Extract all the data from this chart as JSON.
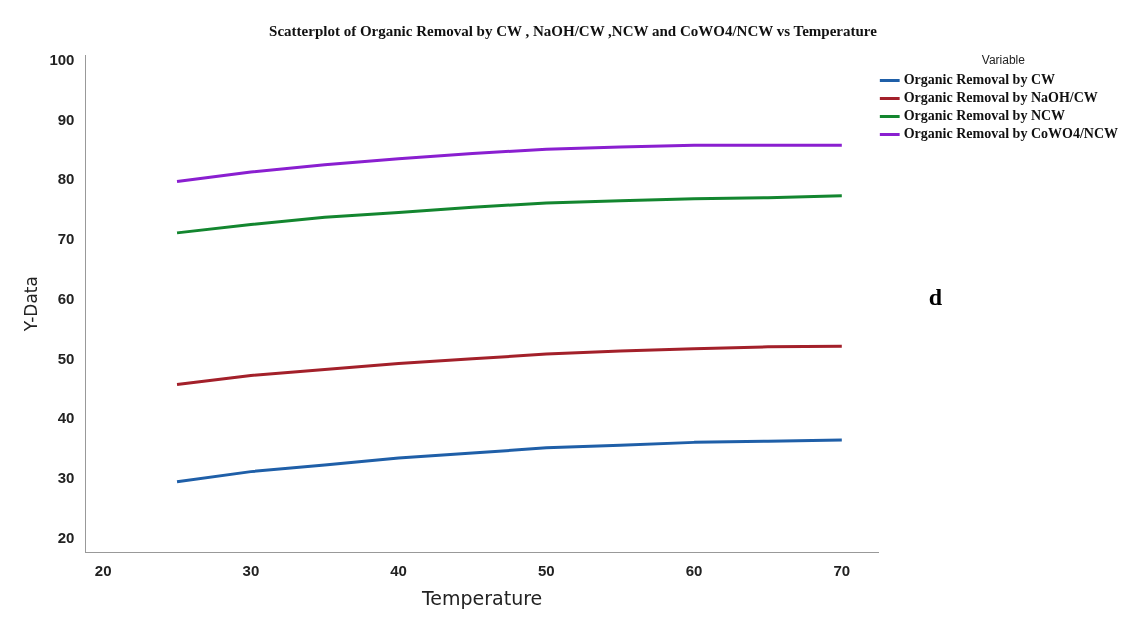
{
  "chart_data": {
    "type": "line",
    "title": "Scatterplot of Organic Removal by CW , NaOH/CW ,NCW and CoWO4/NCW vs Temperature",
    "xlabel": "Temperature",
    "ylabel": "Y-Data",
    "legend_title": "Variable",
    "legend": "top right",
    "grid": false,
    "marker": "none",
    "line_style": "solid",
    "annotations": [
      "d"
    ],
    "x": [
      25,
      30,
      35,
      40,
      45,
      50,
      55,
      60,
      65,
      70
    ],
    "xlim": [
      18.8,
      72.5
    ],
    "xticks": [
      20,
      30,
      40,
      50,
      60,
      70
    ],
    "ylim": [
      17.7,
      101
    ],
    "yticks": [
      20,
      30,
      40,
      50,
      60,
      70,
      80,
      90,
      100
    ],
    "series": [
      {
        "name": "Organic Removal by CW",
        "color": "#1f5fa8",
        "values": [
          29.5,
          31.2,
          32.3,
          33.5,
          34.3,
          35.2,
          35.6,
          36.1,
          36.3,
          36.5
        ]
      },
      {
        "name": "Organic Removal by NaOH/CW",
        "color": "#a3202a",
        "values": [
          45.8,
          47.3,
          48.3,
          49.3,
          50.1,
          50.9,
          51.4,
          51.8,
          52.1,
          52.2
        ]
      },
      {
        "name": "Organic Removal by NCW",
        "color": "#13862f",
        "values": [
          71.2,
          72.6,
          73.8,
          74.6,
          75.5,
          76.2,
          76.6,
          76.9,
          77.1,
          77.4
        ]
      },
      {
        "name": "Organic Removal by CoWO4/NCW",
        "color": "#8a1fd0",
        "values": [
          79.8,
          81.4,
          82.6,
          83.6,
          84.5,
          85.2,
          85.6,
          85.9,
          85.9,
          85.9
        ]
      }
    ]
  }
}
